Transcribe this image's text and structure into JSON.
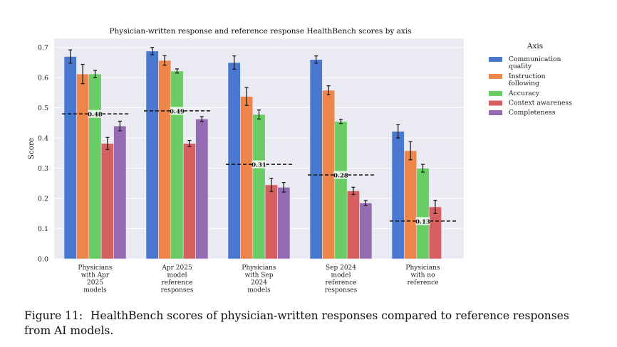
{
  "chart_data": {
    "type": "bar",
    "title": "Physician-written response and reference response HealthBench scores by axis",
    "xlabel": "",
    "ylabel": "Score",
    "ylim": [
      0,
      0.73
    ],
    "yticks": [
      "0.0",
      "0.1",
      "0.2",
      "0.3",
      "0.4",
      "0.5",
      "0.6",
      "0.7"
    ],
    "grid": true,
    "categories": [
      [
        "Physicians",
        "with Apr",
        "2025",
        "models"
      ],
      [
        "Apr 2025",
        "model",
        "reference",
        "responses"
      ],
      [
        "Physicians",
        "with Sep",
        "2024",
        "models"
      ],
      [
        "Sep 2024",
        "model",
        "reference",
        "responses"
      ],
      [
        "Physicians",
        "with no",
        "reference"
      ]
    ],
    "legend": {
      "title": "Axis",
      "position": "right",
      "entries": [
        [
          "Communication",
          "quality"
        ],
        [
          "Instruction",
          "following"
        ],
        [
          "Accuracy"
        ],
        [
          "Context awareness"
        ],
        [
          "Completeness"
        ]
      ]
    },
    "series": [
      {
        "name": "Communication quality",
        "color": "#4878d0",
        "values": [
          0.67,
          0.688,
          0.65,
          0.66,
          0.422
        ],
        "errors": [
          0.022,
          0.012,
          0.022,
          0.012,
          0.022
        ]
      },
      {
        "name": "Instruction following",
        "color": "#ee854a",
        "values": [
          0.612,
          0.657,
          0.538,
          0.558,
          0.358
        ],
        "errors": [
          0.032,
          0.016,
          0.03,
          0.015,
          0.03
        ]
      },
      {
        "name": "Accuracy",
        "color": "#6acc64",
        "values": [
          0.612,
          0.622,
          0.478,
          0.455,
          0.3
        ],
        "errors": [
          0.012,
          0.007,
          0.015,
          0.007,
          0.013
        ]
      },
      {
        "name": "Context awareness",
        "color": "#d65f5f",
        "values": [
          0.382,
          0.382,
          0.245,
          0.225,
          0.172
        ],
        "errors": [
          0.02,
          0.01,
          0.022,
          0.012,
          0.022
        ]
      },
      {
        "name": "Completeness",
        "color": "#956cb4",
        "values": [
          0.44,
          0.463,
          0.237,
          0.185,
          null
        ],
        "errors": [
          0.016,
          0.008,
          0.016,
          0.008,
          null
        ]
      }
    ],
    "reference_lines": {
      "values": [
        0.48,
        0.49,
        0.313,
        0.278,
        0.125
      ],
      "labels": [
        "0.48",
        "0.49",
        "0.31",
        "0.28",
        "0.13"
      ]
    }
  },
  "caption": {
    "label": "Figure 11:",
    "text": "HealthBench scores of physician-written responses compared to reference responses from AI models."
  }
}
